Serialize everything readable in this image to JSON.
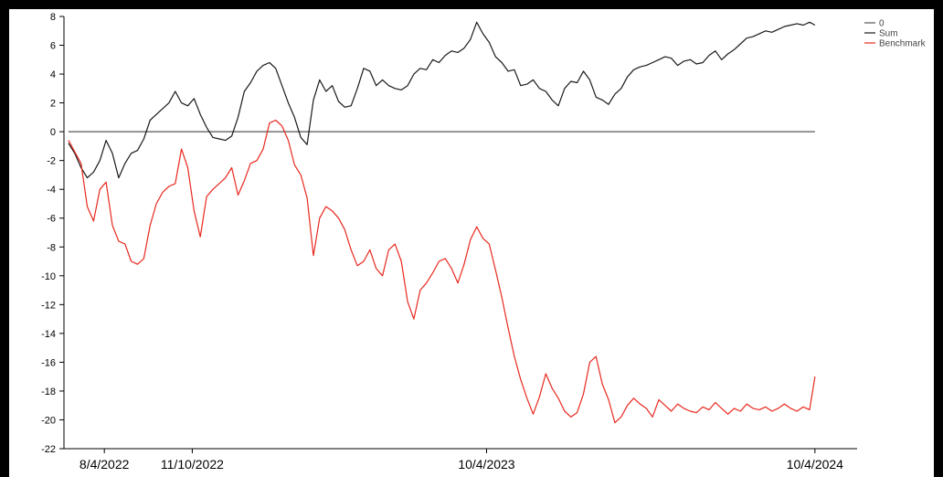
{
  "chart_data": {
    "type": "line",
    "title": "",
    "xlabel": "",
    "ylabel": "",
    "ylim": [
      -22,
      8
    ],
    "yticks": [
      8,
      6,
      4,
      2,
      0,
      -2,
      -4,
      -6,
      -8,
      -10,
      -12,
      -14,
      -16,
      -18,
      -20,
      -22
    ],
    "ytick_labels": [
      "8",
      "6",
      "4",
      "2",
      "0",
      "-2",
      "-4",
      "-6",
      "-8",
      "-10",
      "-12",
      "-14",
      "-16",
      "-18",
      "-20",
      "-22"
    ],
    "xlim": [
      "2022-06-20",
      "2024-11-20"
    ],
    "xticks": [
      "2022-08-04",
      "2022-11-10",
      "2023-10-04",
      "2024-10-04"
    ],
    "xtick_labels": [
      "8/4/2022",
      "11/10/2022",
      "10/4/2023",
      "10/4/2024"
    ],
    "grid": false,
    "legend_position": "top-right",
    "series": [
      {
        "name": "0",
        "color": "#555555",
        "x": [
          "2022-06-25",
          "2024-10-04"
        ],
        "y": [
          0,
          0
        ]
      },
      {
        "name": "Sum",
        "color": "#1a1a1a",
        "x": [
          "2022-06-25",
          "2022-07-02",
          "2022-07-09",
          "2022-07-16",
          "2022-07-23",
          "2022-07-30",
          "2022-08-06",
          "2022-08-13",
          "2022-08-20",
          "2022-08-27",
          "2022-09-03",
          "2022-09-10",
          "2022-09-17",
          "2022-09-24",
          "2022-10-01",
          "2022-10-08",
          "2022-10-15",
          "2022-10-22",
          "2022-10-29",
          "2022-11-05",
          "2022-11-12",
          "2022-11-19",
          "2022-11-26",
          "2022-12-03",
          "2022-12-10",
          "2022-12-17",
          "2022-12-24",
          "2022-12-31",
          "2023-01-07",
          "2023-01-14",
          "2023-01-21",
          "2023-01-28",
          "2023-02-04",
          "2023-02-11",
          "2023-02-18",
          "2023-02-25",
          "2023-03-04",
          "2023-03-11",
          "2023-03-18",
          "2023-03-25",
          "2023-04-01",
          "2023-04-08",
          "2023-04-15",
          "2023-04-22",
          "2023-04-29",
          "2023-05-06",
          "2023-05-13",
          "2023-05-20",
          "2023-05-27",
          "2023-06-03",
          "2023-06-10",
          "2023-06-17",
          "2023-06-24",
          "2023-07-01",
          "2023-07-08",
          "2023-07-15",
          "2023-07-22",
          "2023-07-29",
          "2023-08-05",
          "2023-08-12",
          "2023-08-19",
          "2023-08-26",
          "2023-09-02",
          "2023-09-09",
          "2023-09-16",
          "2023-09-23",
          "2023-09-30",
          "2023-10-07",
          "2023-10-14",
          "2023-10-21",
          "2023-10-28",
          "2023-11-04",
          "2023-11-11",
          "2023-11-18",
          "2023-11-25",
          "2023-12-02",
          "2023-12-09",
          "2023-12-16",
          "2023-12-23",
          "2023-12-30",
          "2024-01-06",
          "2024-01-13",
          "2024-01-20",
          "2024-01-27",
          "2024-02-03",
          "2024-02-10",
          "2024-02-17",
          "2024-02-24",
          "2024-03-02",
          "2024-03-09",
          "2024-03-16",
          "2024-03-23",
          "2024-03-30",
          "2024-04-06",
          "2024-04-13",
          "2024-04-20",
          "2024-04-27",
          "2024-05-04",
          "2024-05-11",
          "2024-05-18",
          "2024-05-25",
          "2024-06-01",
          "2024-06-08",
          "2024-06-15",
          "2024-06-22",
          "2024-06-29",
          "2024-07-06",
          "2024-07-13",
          "2024-07-20",
          "2024-07-27",
          "2024-08-03",
          "2024-08-10",
          "2024-08-17",
          "2024-08-24",
          "2024-08-31",
          "2024-09-07",
          "2024-09-14",
          "2024-09-21",
          "2024-09-28",
          "2024-10-04"
        ],
        "y": [
          -0.8,
          -1.5,
          -2.5,
          -3.2,
          -2.8,
          -2.0,
          -0.6,
          -1.5,
          -3.2,
          -2.2,
          -1.5,
          -1.3,
          -0.5,
          0.8,
          1.2,
          1.6,
          2.0,
          2.8,
          2.0,
          1.8,
          2.3,
          1.2,
          0.3,
          -0.4,
          -0.5,
          -0.6,
          -0.3,
          1.0,
          2.8,
          3.4,
          4.2,
          4.6,
          4.8,
          4.4,
          3.2,
          2.0,
          1.0,
          -0.4,
          -0.9,
          2.2,
          3.6,
          2.8,
          3.2,
          2.1,
          1.7,
          1.8,
          3.0,
          4.4,
          4.2,
          3.2,
          3.6,
          3.2,
          3.0,
          2.9,
          3.2,
          4.0,
          4.4,
          4.3,
          5.0,
          4.8,
          5.3,
          5.6,
          5.5,
          5.8,
          6.4,
          7.6,
          6.8,
          6.2,
          5.2,
          4.8,
          4.2,
          4.3,
          3.2,
          3.3,
          3.6,
          3.0,
          2.8,
          2.2,
          1.8,
          3.0,
          3.5,
          3.4,
          4.2,
          3.6,
          2.4,
          2.2,
          1.9,
          2.6,
          3.0,
          3.8,
          4.3,
          4.5,
          4.6,
          4.8,
          5.0,
          5.2,
          5.1,
          4.6,
          4.9,
          5.0,
          4.7,
          4.8,
          5.3,
          5.6,
          5.0,
          5.4,
          5.7,
          6.1,
          6.5,
          6.6,
          6.8,
          7.0,
          6.9,
          7.1,
          7.3,
          7.4,
          7.5,
          7.4,
          7.6,
          7.4
        ]
      },
      {
        "name": "Benchmark",
        "color": "#e8281e",
        "x": [
          "2022-06-25",
          "2022-07-02",
          "2022-07-09",
          "2022-07-16",
          "2022-07-23",
          "2022-07-30",
          "2022-08-06",
          "2022-08-13",
          "2022-08-20",
          "2022-08-27",
          "2022-09-03",
          "2022-09-10",
          "2022-09-17",
          "2022-09-24",
          "2022-10-01",
          "2022-10-08",
          "2022-10-15",
          "2022-10-22",
          "2022-10-29",
          "2022-11-05",
          "2022-11-12",
          "2022-11-19",
          "2022-11-26",
          "2022-12-03",
          "2022-12-10",
          "2022-12-17",
          "2022-12-24",
          "2022-12-31",
          "2023-01-07",
          "2023-01-14",
          "2023-01-21",
          "2023-01-28",
          "2023-02-04",
          "2023-02-11",
          "2023-02-18",
          "2023-02-25",
          "2023-03-04",
          "2023-03-11",
          "2023-03-18",
          "2023-03-25",
          "2023-04-01",
          "2023-04-08",
          "2023-04-15",
          "2023-04-22",
          "2023-04-29",
          "2023-05-06",
          "2023-05-13",
          "2023-05-20",
          "2023-05-27",
          "2023-06-03",
          "2023-06-10",
          "2023-06-17",
          "2023-06-24",
          "2023-07-01",
          "2023-07-08",
          "2023-07-15",
          "2023-07-22",
          "2023-07-29",
          "2023-08-05",
          "2023-08-12",
          "2023-08-19",
          "2023-08-26",
          "2023-09-02",
          "2023-09-09",
          "2023-09-16",
          "2023-09-23",
          "2023-09-30",
          "2023-10-07",
          "2023-10-14",
          "2023-10-21",
          "2023-10-28",
          "2023-11-04",
          "2023-11-11",
          "2023-11-18",
          "2023-11-25",
          "2023-12-02",
          "2023-12-09",
          "2023-12-16",
          "2023-12-23",
          "2023-12-30",
          "2024-01-06",
          "2024-01-13",
          "2024-01-20",
          "2024-01-27",
          "2024-02-03",
          "2024-02-10",
          "2024-02-17",
          "2024-02-24",
          "2024-03-02",
          "2024-03-09",
          "2024-03-16",
          "2024-03-23",
          "2024-03-30",
          "2024-04-06",
          "2024-04-13",
          "2024-04-20",
          "2024-04-27",
          "2024-05-04",
          "2024-05-11",
          "2024-05-18",
          "2024-05-25",
          "2024-06-01",
          "2024-06-08",
          "2024-06-15",
          "2024-06-22",
          "2024-06-29",
          "2024-07-06",
          "2024-07-13",
          "2024-07-20",
          "2024-07-27",
          "2024-08-03",
          "2024-08-10",
          "2024-08-17",
          "2024-08-24",
          "2024-08-31",
          "2024-09-07",
          "2024-09-14",
          "2024-09-21",
          "2024-09-28",
          "2024-10-04"
        ],
        "y": [
          -0.6,
          -1.4,
          -2.2,
          -5.2,
          -6.2,
          -4.0,
          -3.5,
          -6.5,
          -7.6,
          -7.8,
          -9.0,
          -9.2,
          -8.8,
          -6.5,
          -5.0,
          -4.2,
          -3.8,
          -3.6,
          -1.2,
          -2.5,
          -5.5,
          -7.3,
          -4.5,
          -4.0,
          -3.6,
          -3.2,
          -2.5,
          -4.4,
          -3.4,
          -2.2,
          -2.0,
          -1.2,
          0.6,
          0.8,
          0.4,
          -0.6,
          -2.3,
          -3.0,
          -4.6,
          -8.6,
          -6.0,
          -5.2,
          -5.5,
          -6.0,
          -6.8,
          -8.2,
          -9.3,
          -9.0,
          -8.2,
          -9.5,
          -10.0,
          -8.2,
          -7.8,
          -9.0,
          -11.8,
          -13.0,
          -11.0,
          -10.5,
          -9.8,
          -9.0,
          -8.8,
          -9.5,
          -10.5,
          -9.2,
          -7.5,
          -6.6,
          -7.4,
          -7.8,
          -9.6,
          -11.5,
          -13.6,
          -15.6,
          -17.2,
          -18.5,
          -19.6,
          -18.4,
          -16.8,
          -17.8,
          -18.5,
          -19.4,
          -19.8,
          -19.5,
          -18.2,
          -16.0,
          -15.6,
          -17.5,
          -18.6,
          -20.2,
          -19.8,
          -19.0,
          -18.5,
          -18.9,
          -19.2,
          -19.8,
          -18.6,
          -19.0,
          -19.4,
          -18.9,
          -19.2,
          -19.4,
          -19.5,
          -19.1,
          -19.3,
          -18.8,
          -19.2,
          -19.6,
          -19.2,
          -19.4,
          -18.9,
          -19.2,
          -19.3,
          -19.1,
          -19.4,
          -19.2,
          -18.9,
          -19.2,
          -19.4,
          -19.1,
          -19.3,
          -17.0
        ]
      }
    ]
  }
}
